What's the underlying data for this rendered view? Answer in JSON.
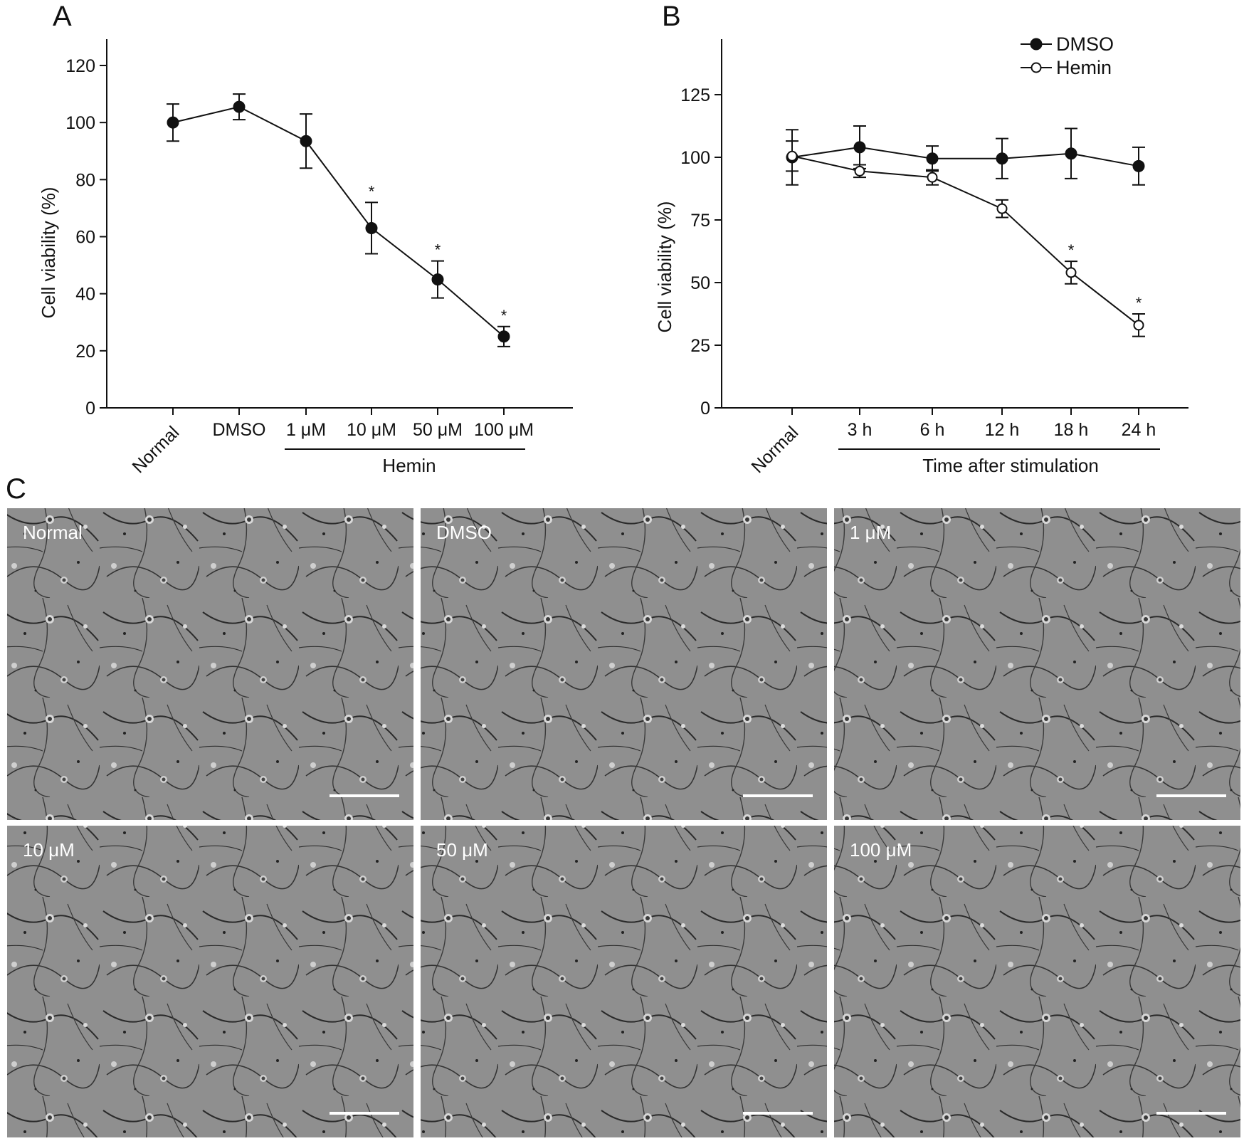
{
  "panel_labels": {
    "a": "A",
    "b": "B",
    "c": "C"
  },
  "colors": {
    "line": "#111111",
    "marker_filled": "#111111",
    "marker_open_fill": "#ffffff",
    "micrograph_background": "#8f8f8f",
    "condition_label": "#ffffff"
  },
  "chart_data": [
    {
      "panel": "A",
      "type": "line",
      "categories": [
        "Normal",
        "DMSO",
        "1 μM",
        "10 μM",
        "50 μM",
        "100 μM"
      ],
      "group_label": "Hemin",
      "group_spans": [
        "1 μM",
        "100 μM"
      ],
      "ylabel": "Cell viability (%)",
      "xlabel": "",
      "ylim": [
        0,
        120
      ],
      "yticks": [
        "0",
        "20",
        "40",
        "60",
        "80",
        "100",
        "120"
      ],
      "grid": false,
      "series": [
        {
          "name": "",
          "marker": "filled",
          "values": [
            100,
            105.5,
            93.5,
            63,
            45,
            25
          ],
          "errors": [
            6.5,
            4.5,
            9.5,
            9,
            6.5,
            3.5
          ]
        }
      ],
      "significance": [
        "",
        "",
        "",
        "*",
        "*",
        "*"
      ]
    },
    {
      "panel": "B",
      "type": "line",
      "categories": [
        "Normal",
        "3 h",
        "6 h",
        "12 h",
        "18 h",
        "24 h"
      ],
      "group_label": "Time after stimulation",
      "group_spans": [
        "3 h",
        "24 h"
      ],
      "ylabel": "Cell viability (%)",
      "xlabel": "",
      "ylim": [
        0,
        150
      ],
      "yticks": [
        "0",
        "25",
        "50",
        "75",
        "100",
        "125"
      ],
      "grid": false,
      "legend": "top-right",
      "series": [
        {
          "name": "DMSO",
          "marker": "filled",
          "values": [
            100,
            104,
            99.5,
            99.5,
            101.5,
            96.5
          ],
          "errors": [
            11,
            8.5,
            5,
            8,
            10,
            7.5
          ]
        },
        {
          "name": "Hemin",
          "marker": "open",
          "values": [
            100.5,
            94.5,
            92,
            79.5,
            54,
            33
          ],
          "errors": [
            6,
            2.5,
            3,
            3.5,
            4.5,
            4.5
          ]
        }
      ],
      "significance": [
        "",
        "",
        "",
        "",
        "*",
        "*"
      ]
    }
  ],
  "micrographs": [
    {
      "label": "Normal",
      "condition": "normal"
    },
    {
      "label": "DMSO",
      "condition": "dmso"
    },
    {
      "label": "1 μM",
      "condition": "1um"
    },
    {
      "label": "10 μM",
      "condition": "10um"
    },
    {
      "label": "50 μM",
      "condition": "50um"
    },
    {
      "label": "100 μM",
      "condition": "100um"
    }
  ]
}
